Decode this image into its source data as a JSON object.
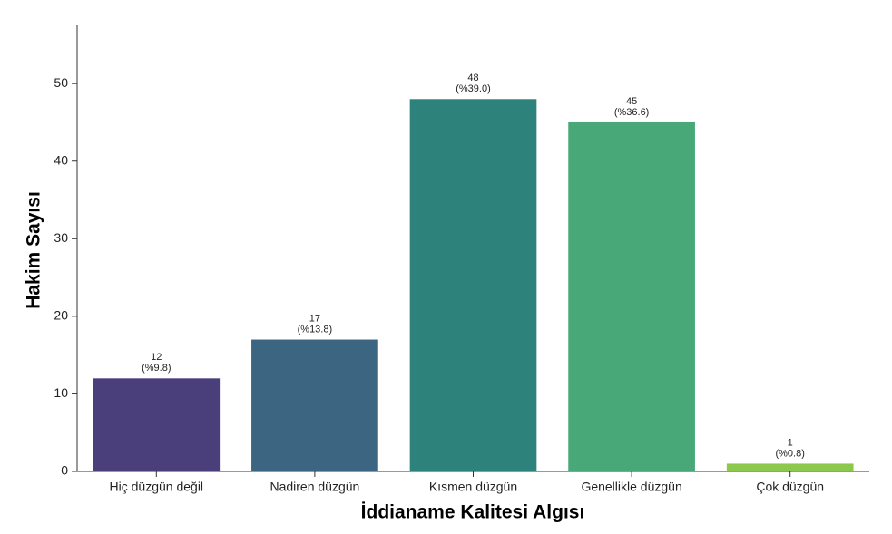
{
  "chart_data": {
    "type": "bar",
    "x_label": "İddianame Kalitesi Algısı",
    "y_label": "Hakim Sayısı",
    "categories": [
      "Hiç düzgün değil",
      "Nadiren düzgün",
      "Kısmen düzgün",
      "Genellikle düzgün",
      "Çok düzgün"
    ],
    "values": [
      12,
      17,
      48,
      45,
      1
    ],
    "colors": [
      "#4b3f7b",
      "#3c6581",
      "#2e827c",
      "#48a878",
      "#8cc84b"
    ],
    "shares": {
      "values": [
        9.8,
        13.8,
        39.0,
        36.6,
        0.8
      ],
      "value_labels": [
        "(%9.8)",
        "(%13.8)",
        "(%39.0)",
        "(%36.6)",
        "(%0.8)"
      ]
    },
    "ylim": [
      0,
      57.5
    ],
    "yticks": [
      0,
      10,
      20,
      30,
      40,
      50
    ]
  }
}
